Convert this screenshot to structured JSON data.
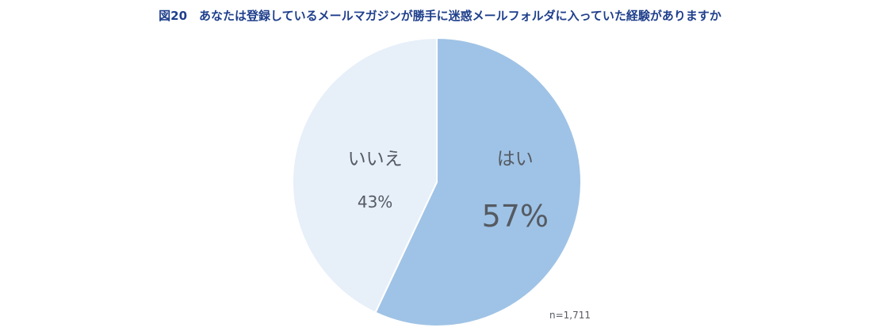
{
  "chart_data": {
    "type": "pie",
    "title": "図20　あなたは登録しているメールマガジンが勝手に迷惑メールフォルダに入っていた経験がありますか",
    "slices": [
      {
        "label": "はい",
        "value": 57,
        "value_label": "57%",
        "color": "#9fc3e6"
      },
      {
        "label": "いいえ",
        "value": 43,
        "value_label": "43%",
        "color": "#e7eff9"
      }
    ],
    "start": "12 o'clock",
    "direction": "clockwise",
    "legend": "none",
    "note": "n=1,711"
  }
}
